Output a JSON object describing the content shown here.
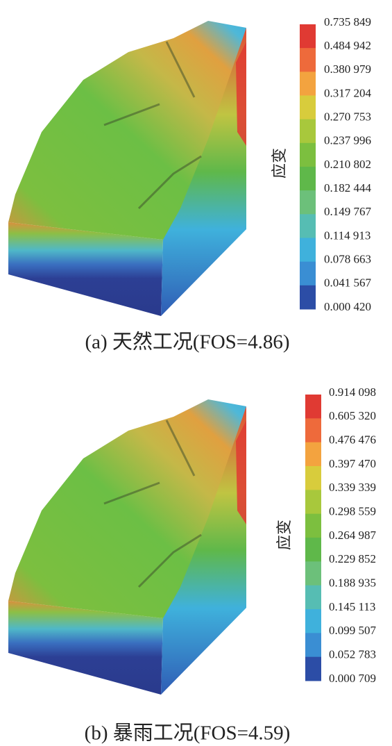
{
  "panels": [
    {
      "caption": "(a) 天然工况(FOS=4.86)",
      "legend_label": "应变",
      "levels": [
        "0.735 849",
        "0.484 942",
        "0.380 979",
        "0.317 204",
        "0.270 753",
        "0.237 996",
        "0.210 802",
        "0.182 444",
        "0.149 767",
        "0.114 913",
        "0.078 663",
        "0.041 567",
        "0.000 420"
      ],
      "colors": [
        "#e03a33",
        "#ee6a3b",
        "#f3a33f",
        "#d8cc3c",
        "#a8c83c",
        "#7cbf3f",
        "#5fb84a",
        "#6cc07a",
        "#56bdb3",
        "#3fb1dc",
        "#3a8ed3",
        "#2f68bd",
        "#2c4da6"
      ]
    },
    {
      "caption": "(b) 暴雨工况(FOS=4.59)",
      "legend_label": "应变",
      "levels": [
        "0.914 098",
        "0.605 320",
        "0.476 476",
        "0.397 470",
        "0.339 339",
        "0.298 559",
        "0.264 987",
        "0.229 852",
        "0.188 935",
        "0.145 113",
        "0.099 507",
        "0.052 783",
        "0.000 709"
      ],
      "colors": [
        "#e03a33",
        "#ee6a3b",
        "#f3a33f",
        "#d8cc3c",
        "#a8c83c",
        "#7cbf3f",
        "#5fb84a",
        "#6cc07a",
        "#56bdb3",
        "#3fb1dc",
        "#3a8ed3",
        "#2f68bd",
        "#2c4da6"
      ]
    }
  ]
}
